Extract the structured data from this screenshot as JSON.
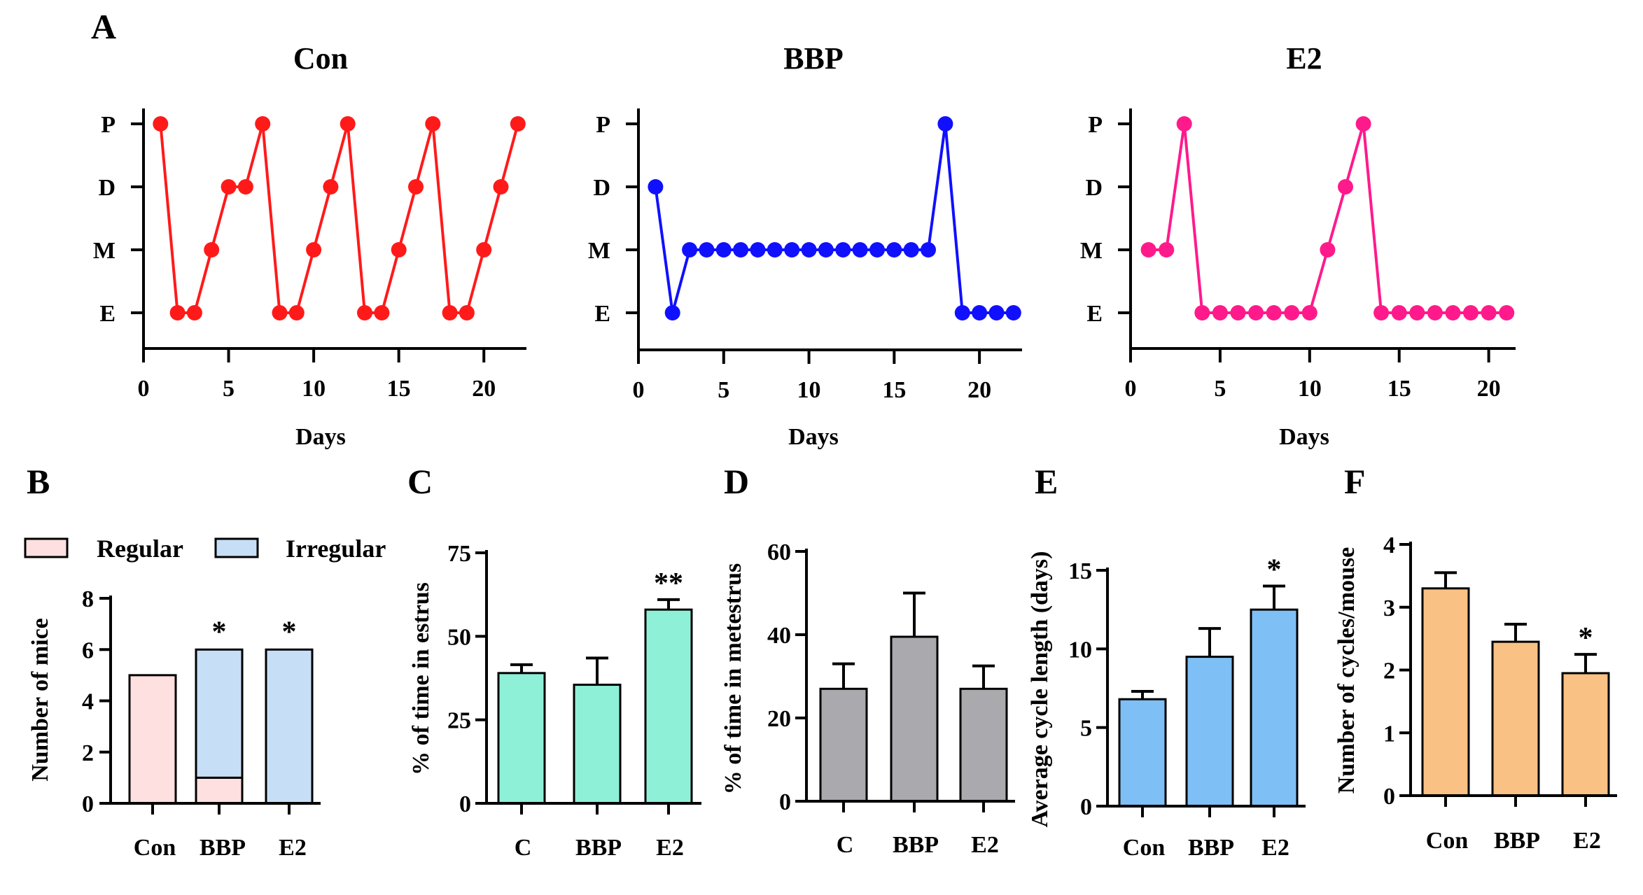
{
  "panel_labels": [
    "A",
    "B",
    "C",
    "D",
    "E",
    "F"
  ],
  "chart_data": [
    {
      "panel": "A",
      "type": "line",
      "title": "Con",
      "xlabel": "Days",
      "ylabel": "",
      "categories": [
        "E",
        "M",
        "D",
        "P"
      ],
      "xlim": [
        0,
        22.5
      ],
      "xticks": [
        0,
        5,
        10,
        15,
        20
      ],
      "color": "#ff1a1a",
      "series": [
        {
          "name": "Con",
          "x": [
            1,
            2,
            3,
            4,
            5,
            6,
            7,
            8,
            9,
            10,
            11,
            12,
            13,
            14,
            15,
            16,
            17,
            18,
            19,
            20,
            21,
            22
          ],
          "y": [
            "P",
            "E",
            "E",
            "M",
            "D",
            "D",
            "P",
            "E",
            "E",
            "M",
            "D",
            "P",
            "E",
            "E",
            "M",
            "D",
            "P",
            "E",
            "E",
            "M",
            "D",
            "P"
          ]
        }
      ]
    },
    {
      "panel": "A",
      "type": "line",
      "title": "BBP",
      "xlabel": "Days",
      "ylabel": "",
      "categories": [
        "E",
        "M",
        "D",
        "P"
      ],
      "xlim": [
        0,
        22.5
      ],
      "xticks": [
        0,
        5,
        10,
        15,
        20
      ],
      "color": "#1010ff",
      "series": [
        {
          "name": "BBP",
          "x": [
            1,
            2,
            3,
            4,
            5,
            6,
            7,
            8,
            9,
            10,
            11,
            12,
            13,
            14,
            15,
            16,
            17,
            18,
            19,
            20,
            21,
            22
          ],
          "y": [
            "D",
            "E",
            "M",
            "M",
            "M",
            "M",
            "M",
            "M",
            "M",
            "M",
            "M",
            "M",
            "M",
            "M",
            "M",
            "M",
            "M",
            "P",
            "E",
            "E",
            "E",
            "E"
          ]
        }
      ]
    },
    {
      "panel": "A",
      "type": "line",
      "title": "E2",
      "xlabel": "Days",
      "ylabel": "",
      "categories": [
        "E",
        "M",
        "D",
        "P"
      ],
      "xlim": [
        0,
        21.5
      ],
      "xticks": [
        0,
        5,
        10,
        15,
        20
      ],
      "color": "#ff1a8c",
      "series": [
        {
          "name": "E2",
          "x": [
            1,
            2,
            3,
            4,
            5,
            6,
            7,
            8,
            9,
            10,
            11,
            12,
            13,
            14,
            15,
            16,
            17,
            18,
            19,
            20,
            21
          ],
          "y": [
            "M",
            "M",
            "P",
            "E",
            "E",
            "E",
            "E",
            "E",
            "E",
            "E",
            "M",
            "D",
            "P",
            "E",
            "E",
            "E",
            "E",
            "E",
            "E",
            "E",
            "E"
          ]
        }
      ]
    },
    {
      "panel": "B",
      "type": "bar",
      "stacked": true,
      "title": "",
      "xlabel": "",
      "ylabel": "Number of mice",
      "categories": [
        "Con",
        "BBP",
        "E2"
      ],
      "ylim": [
        0,
        8
      ],
      "yticks": [
        0,
        2,
        4,
        6,
        8
      ],
      "series": [
        {
          "name": "Regular",
          "color": "#ffe0e0",
          "values": [
            5,
            1,
            0
          ]
        },
        {
          "name": "Irregular",
          "color": "#c6dff7",
          "values": [
            0,
            5,
            6
          ]
        }
      ],
      "annotations": [
        "",
        "*",
        "*"
      ]
    },
    {
      "panel": "C",
      "type": "bar",
      "title": "",
      "xlabel": "",
      "ylabel": "% of time in estrus",
      "categories": [
        "C",
        "BBP",
        "E2"
      ],
      "ylim": [
        0,
        75
      ],
      "yticks": [
        0,
        25,
        50,
        75
      ],
      "color": "#8ff0d8",
      "values": [
        39,
        35.5,
        58
      ],
      "errors": [
        2.5,
        8,
        3
      ],
      "annotations": [
        "",
        "",
        "**"
      ]
    },
    {
      "panel": "D",
      "type": "bar",
      "title": "",
      "xlabel": "",
      "ylabel": "% of time in metestrus",
      "categories": [
        "C",
        "BBP",
        "E2"
      ],
      "ylim": [
        0,
        60
      ],
      "yticks": [
        0,
        20,
        40,
        60
      ],
      "color": "#a9a9ae",
      "values": [
        27,
        39.5,
        27
      ],
      "errors": [
        6,
        10.5,
        5.5
      ],
      "annotations": [
        "",
        "",
        ""
      ]
    },
    {
      "panel": "E",
      "type": "bar",
      "title": "",
      "xlabel": "",
      "ylabel": "Average cycle length (days)",
      "categories": [
        "Con",
        "BBP",
        "E2"
      ],
      "ylim": [
        0,
        15
      ],
      "yticks": [
        0,
        5,
        10,
        15
      ],
      "color": "#7ebff5",
      "values": [
        6.8,
        9.5,
        12.5
      ],
      "errors": [
        0.5,
        1.8,
        1.5
      ],
      "annotations": [
        "",
        "",
        "*"
      ]
    },
    {
      "panel": "F",
      "type": "bar",
      "title": "",
      "xlabel": "",
      "ylabel": "Number of cycles/mouse",
      "categories": [
        "Con",
        "BBP",
        "E2"
      ],
      "ylim": [
        0,
        4
      ],
      "yticks": [
        0,
        1,
        2,
        3,
        4
      ],
      "color": "#f9c184",
      "values": [
        3.3,
        2.45,
        1.95
      ],
      "errors": [
        0.25,
        0.28,
        0.3
      ],
      "annotations": [
        "",
        "",
        "*"
      ]
    }
  ]
}
